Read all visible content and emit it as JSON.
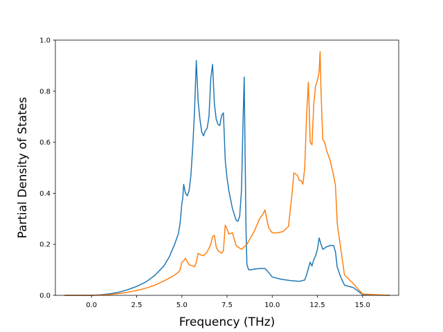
{
  "chart_data": {
    "type": "line",
    "title": "",
    "xlabel": "Frequency (THz)",
    "ylabel": "Partial Density of States",
    "xlim": [
      -2.0,
      17.0
    ],
    "ylim": [
      0.0,
      1.0
    ],
    "xticks": [
      0.0,
      2.5,
      5.0,
      7.5,
      10.0,
      12.5,
      15.0
    ],
    "xtick_labels": [
      "0.0",
      "2.5",
      "5.0",
      "7.5",
      "10.0",
      "12.5",
      "15.0"
    ],
    "yticks": [
      0.0,
      0.2,
      0.4,
      0.6,
      0.8,
      1.0
    ],
    "ytick_labels": [
      "0.0",
      "0.2",
      "0.4",
      "0.6",
      "0.8",
      "1.0"
    ],
    "grid": false,
    "legend": "none",
    "series": [
      {
        "color": "#1f77b4",
        "x": [
          -1.5,
          0.0,
          0.5,
          1.0,
          1.5,
          2.0,
          2.5,
          3.0,
          3.5,
          4.0,
          4.3,
          4.6,
          4.8,
          4.9,
          5.0,
          5.05,
          5.1,
          5.2,
          5.3,
          5.4,
          5.5,
          5.6,
          5.7,
          5.8,
          5.9,
          6.0,
          6.1,
          6.2,
          6.3,
          6.4,
          6.5,
          6.6,
          6.7,
          6.8,
          6.9,
          7.0,
          7.1,
          7.2,
          7.3,
          7.4,
          7.5,
          7.6,
          7.8,
          8.0,
          8.1,
          8.2,
          8.3,
          8.4,
          8.45,
          8.5,
          8.55,
          8.6,
          8.7,
          8.8,
          9.0,
          9.3,
          9.6,
          9.8,
          10.0,
          10.5,
          11.0,
          11.5,
          11.8,
          11.9,
          12.0,
          12.1,
          12.2,
          12.3,
          12.4,
          12.5,
          12.6,
          12.7,
          12.8,
          12.9,
          13.0,
          13.2,
          13.4,
          13.5,
          13.6,
          13.8,
          14.0,
          14.5,
          15.0,
          16.5
        ],
        "y": [
          0.0,
          0.0,
          0.002,
          0.006,
          0.012,
          0.022,
          0.035,
          0.052,
          0.078,
          0.115,
          0.15,
          0.2,
          0.24,
          0.28,
          0.36,
          0.38,
          0.435,
          0.4,
          0.39,
          0.41,
          0.47,
          0.58,
          0.72,
          0.92,
          0.76,
          0.69,
          0.64,
          0.625,
          0.645,
          0.655,
          0.7,
          0.85,
          0.905,
          0.75,
          0.69,
          0.67,
          0.665,
          0.705,
          0.715,
          0.53,
          0.46,
          0.41,
          0.34,
          0.295,
          0.29,
          0.31,
          0.41,
          0.72,
          0.855,
          0.55,
          0.26,
          0.12,
          0.1,
          0.1,
          0.103,
          0.105,
          0.105,
          0.09,
          0.072,
          0.063,
          0.058,
          0.055,
          0.06,
          0.08,
          0.105,
          0.13,
          0.115,
          0.14,
          0.155,
          0.18,
          0.225,
          0.2,
          0.18,
          0.185,
          0.19,
          0.195,
          0.195,
          0.17,
          0.11,
          0.07,
          0.04,
          0.03,
          0.003,
          0.0
        ]
      },
      {
        "color": "#ff7f0e",
        "x": [
          -1.5,
          0.0,
          0.5,
          1.0,
          1.5,
          2.0,
          2.5,
          3.0,
          3.5,
          4.0,
          4.5,
          4.8,
          4.9,
          5.0,
          5.1,
          5.2,
          5.4,
          5.6,
          5.7,
          5.8,
          5.9,
          6.0,
          6.2,
          6.4,
          6.6,
          6.7,
          6.8,
          6.9,
          7.0,
          7.1,
          7.2,
          7.3,
          7.4,
          7.5,
          7.6,
          7.8,
          8.0,
          8.3,
          8.6,
          9.0,
          9.3,
          9.5,
          9.6,
          9.7,
          9.8,
          10.0,
          10.3,
          10.6,
          10.9,
          11.1,
          11.2,
          11.3,
          11.4,
          11.5,
          11.6,
          11.7,
          11.8,
          11.9,
          12.0,
          12.05,
          12.1,
          12.2,
          12.3,
          12.4,
          12.5,
          12.6,
          12.65,
          12.7,
          12.8,
          12.9,
          13.0,
          13.2,
          13.4,
          13.5,
          13.6,
          13.8,
          14.0,
          14.5,
          15.0,
          16.5
        ],
        "y": [
          0.0,
          0.0,
          0.001,
          0.003,
          0.007,
          0.012,
          0.019,
          0.028,
          0.04,
          0.056,
          0.075,
          0.09,
          0.1,
          0.13,
          0.135,
          0.145,
          0.12,
          0.115,
          0.112,
          0.13,
          0.165,
          0.16,
          0.155,
          0.17,
          0.2,
          0.23,
          0.235,
          0.19,
          0.175,
          0.17,
          0.165,
          0.175,
          0.275,
          0.26,
          0.24,
          0.245,
          0.195,
          0.18,
          0.2,
          0.25,
          0.3,
          0.32,
          0.335,
          0.3,
          0.265,
          0.245,
          0.245,
          0.25,
          0.27,
          0.4,
          0.48,
          0.475,
          0.47,
          0.45,
          0.45,
          0.435,
          0.5,
          0.7,
          0.835,
          0.73,
          0.6,
          0.59,
          0.75,
          0.82,
          0.84,
          0.88,
          0.955,
          0.8,
          0.61,
          0.6,
          0.57,
          0.53,
          0.47,
          0.43,
          0.28,
          0.18,
          0.08,
          0.045,
          0.005,
          0.0
        ]
      }
    ]
  }
}
